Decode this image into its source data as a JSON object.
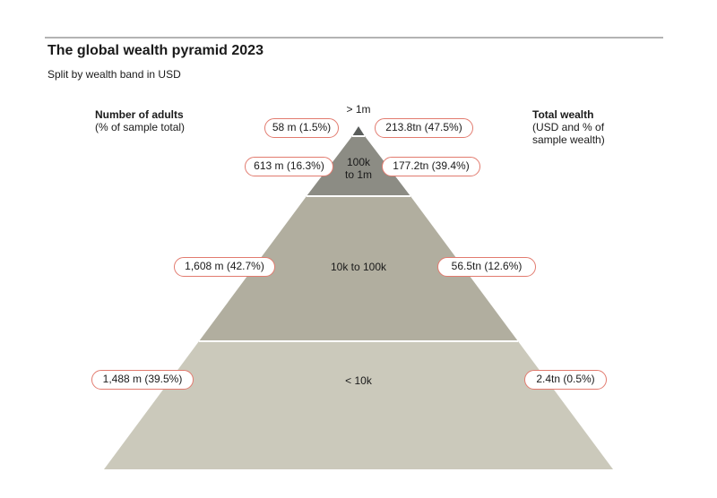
{
  "header": {
    "title": "The global wealth pyramid 2023",
    "subtitle": "Split by wealth band in USD"
  },
  "adults_heading": {
    "title": "Number of adults",
    "subtitle": "(% of sample total)"
  },
  "wealth_heading": {
    "title": "Total wealth",
    "subtitle_line1": "(USD and % of",
    "subtitle_line2": "sample wealth)"
  },
  "bands": [
    {
      "label": "> 1m",
      "adults": "58 m (1.5%)",
      "wealth": "213.8tn (47.5%)",
      "color": "#5a5d5b"
    },
    {
      "label_line1": "100k",
      "label_line2": "to 1m",
      "adults": "613 m (16.3%)",
      "wealth": "177.2tn (39.4%)",
      "color": "#8c8c84"
    },
    {
      "label": "10k to 100k",
      "adults": "1,608 m (42.7%)",
      "wealth": "56.5tn (12.6%)",
      "color": "#b1ae9f"
    },
    {
      "label": "< 10k",
      "adults": "1,488 m (39.5%)",
      "wealth": "2.4tn (0.5%)",
      "color": "#cbc9bb"
    }
  ],
  "colors": {
    "pill_border": "#e27b6f",
    "band_separator": "#ffffff",
    "top_rule": "#b3b3b3"
  }
}
